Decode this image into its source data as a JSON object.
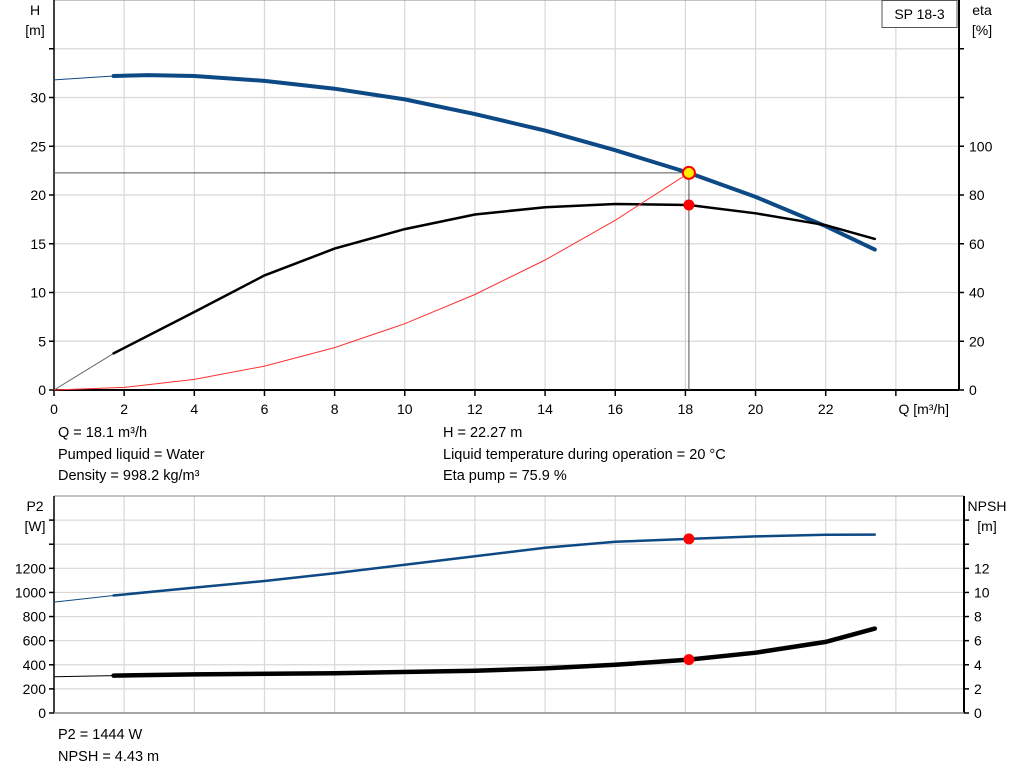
{
  "legend_label": "SP 18-3",
  "info_top": {
    "q": "Q = 18.1 m³/h",
    "liquid": "Pumped liquid = Water",
    "density": "Density = 998.2 kg/m³",
    "h": "H = 22.27 m",
    "temp": "Liquid temperature during operation = 20 °C",
    "eta": "Eta pump = 75.9 %"
  },
  "info_bottom": {
    "p2": "P2 = 1444 W",
    "npsh": "NPSH = 4.43 m"
  },
  "colors": {
    "head": "#0d4a85",
    "eta": "#000000",
    "system": "#ff3030",
    "p2": "#0d4a85",
    "npsh": "#000000",
    "grid": "#d8d8d8",
    "point": "#ff0000",
    "duty_fill": "#ffee00"
  },
  "chart_data": [
    {
      "type": "line",
      "xlabel": "Q [m³/h]",
      "ylabel": "H\n[m]",
      "y2label": "eta\n[%]",
      "xlim": [
        0,
        25.8
      ],
      "ylim": [
        0,
        40
      ],
      "y2lim": [
        0,
        160
      ],
      "xticks": [
        0,
        2,
        4,
        6,
        8,
        10,
        12,
        14,
        16,
        18,
        20,
        22
      ],
      "yticks": [
        0,
        5,
        10,
        15,
        20,
        25,
        30
      ],
      "y2ticks": [
        0,
        20,
        40,
        60,
        80,
        100
      ],
      "grid": true,
      "series": [
        {
          "key": "head",
          "axis": "y",
          "x": [
            0,
            1.7,
            2.7,
            4,
            6,
            8,
            10,
            12,
            14,
            16,
            18.1,
            20,
            22,
            23.4
          ],
          "y": [
            31.8,
            32.2,
            32.3,
            32.2,
            31.7,
            30.9,
            29.8,
            28.3,
            26.6,
            24.6,
            22.27,
            19.8,
            16.8,
            14.4
          ],
          "thin_until": 1.7
        },
        {
          "key": "eta",
          "axis": "y2",
          "x": [
            0,
            1.7,
            4,
            6,
            8,
            10,
            12,
            14,
            16,
            18.1,
            20,
            22,
            23.4
          ],
          "y": [
            0,
            15,
            32,
            47,
            58,
            66,
            72,
            75,
            76.3,
            75.9,
            72.5,
            67.6,
            62
          ],
          "thin_until": 1.7
        },
        {
          "key": "system",
          "axis": "y",
          "x": [
            0,
            2,
            4,
            6,
            8,
            10,
            12,
            14,
            16,
            18.1
          ],
          "y": [
            0,
            0.27,
            1.09,
            2.45,
            4.35,
            6.8,
            9.79,
            13.33,
            17.41,
            22.27
          ]
        }
      ],
      "duty_point": {
        "q": 18.1,
        "h": 22.27,
        "eta": 75.9
      }
    },
    {
      "type": "line",
      "ylabel": "P2\n[W]",
      "y2label": "NPSH\n[m]",
      "xlim": [
        0,
        25.8
      ],
      "ylim": [
        0,
        1800
      ],
      "y2lim": [
        0,
        18
      ],
      "yticks": [
        0,
        200,
        400,
        600,
        800,
        1000,
        1200
      ],
      "y2ticks": [
        0,
        2,
        4,
        6,
        8,
        10,
        12
      ],
      "grid": true,
      "series": [
        {
          "key": "p2",
          "axis": "y",
          "x": [
            0,
            1.7,
            4,
            6,
            8,
            10,
            12,
            14,
            16,
            18.1,
            20,
            22,
            23.4
          ],
          "y": [
            920,
            975,
            1040,
            1095,
            1160,
            1230,
            1300,
            1370,
            1420,
            1444,
            1465,
            1478,
            1480
          ],
          "thin_until": 1.7
        },
        {
          "key": "npsh",
          "axis": "y2",
          "x": [
            0,
            1.7,
            4,
            8,
            12,
            14,
            16,
            18.1,
            20,
            22,
            23.4
          ],
          "y": [
            3.0,
            3.1,
            3.2,
            3.3,
            3.5,
            3.7,
            4.0,
            4.43,
            5.0,
            5.9,
            7.0
          ],
          "thin_until": 1.7
        }
      ],
      "duty_point": {
        "q": 18.1,
        "p2": 1444,
        "npsh": 4.43
      }
    }
  ]
}
